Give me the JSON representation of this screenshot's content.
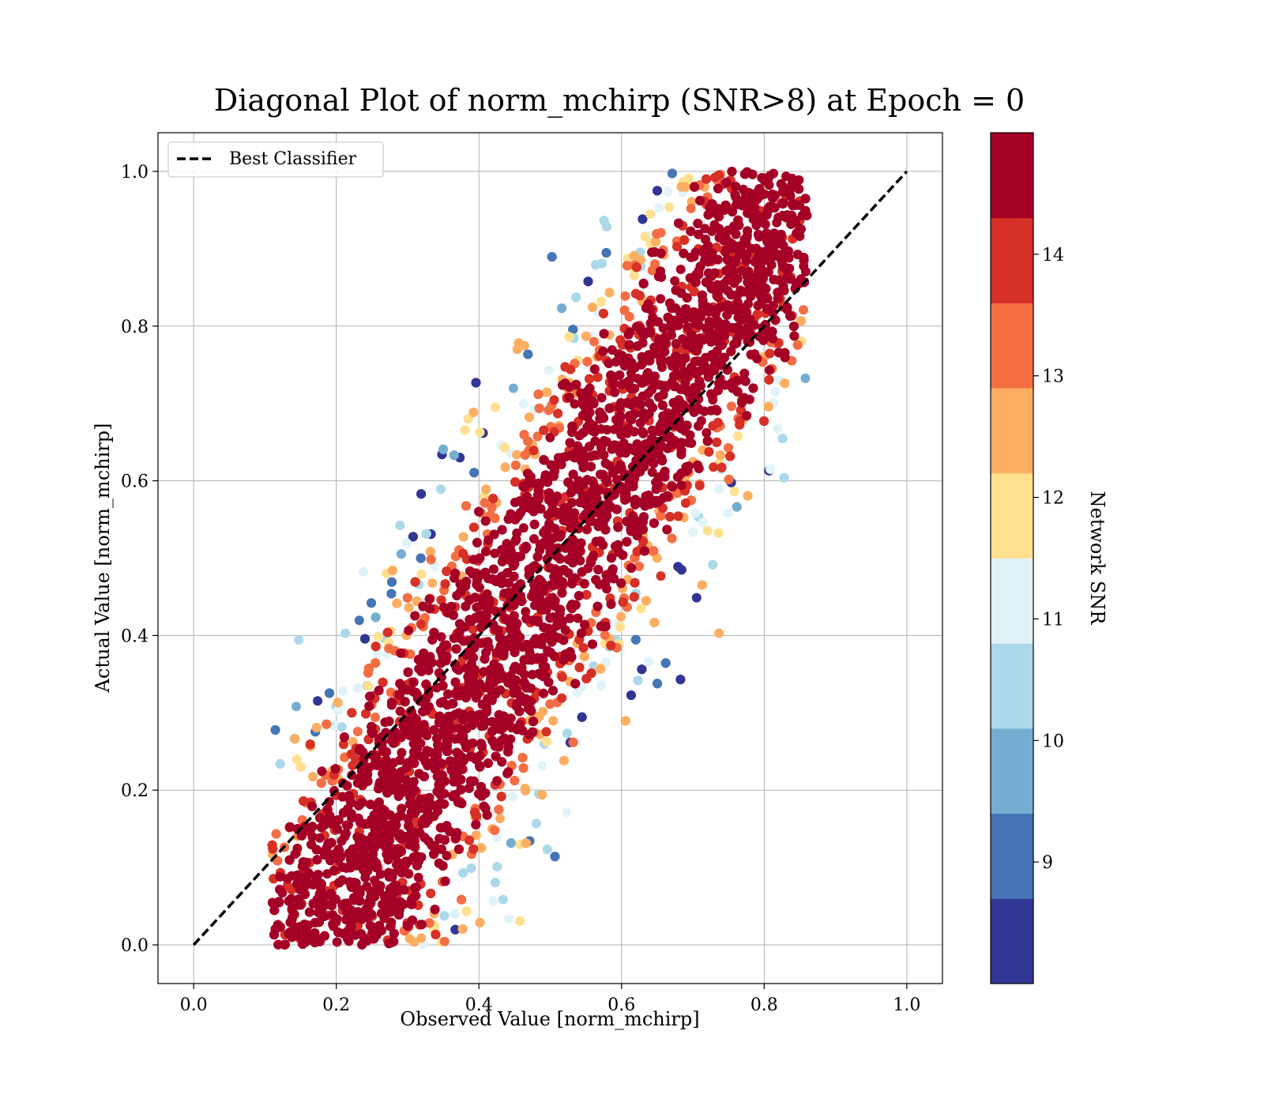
{
  "chart_data": {
    "type": "scatter",
    "title": "Diagonal Plot of norm_mchirp (SNR>8) at Epoch = 0",
    "xlabel": "Observed Value [norm_mchirp]",
    "ylabel": "Actual Value [norm_mchirp]",
    "xlim": [
      -0.05,
      1.05
    ],
    "ylim": [
      -0.05,
      1.05
    ],
    "xticks": [
      "0.0",
      "0.2",
      "0.4",
      "0.6",
      "0.8",
      "1.0"
    ],
    "yticks": [
      "0.0",
      "0.2",
      "0.4",
      "0.6",
      "0.8",
      "1.0"
    ],
    "grid": true,
    "legend": {
      "placement": "upper-left",
      "entries": [
        {
          "label": "Best Classifier",
          "style": "dashed",
          "color": "#000000"
        }
      ]
    },
    "reference_line": {
      "name": "Best Classifier",
      "x": [
        0.0,
        1.0
      ],
      "y": [
        0.0,
        1.0
      ]
    },
    "point_cloud": {
      "description": "dense scatter of observed vs actual norm_mchirp colored by Network SNR",
      "x_range": [
        0.11,
        0.86
      ],
      "y_range": [
        0.0,
        1.0
      ],
      "observed_vs_actual_offset_center": 0.1,
      "observed_vs_actual_offset_spread": 0.09,
      "point_count_rendered": 9000
    },
    "colorbar": {
      "label": "Network SNR",
      "range": [
        8.0,
        15.0
      ],
      "ticks": [
        "9",
        "10",
        "11",
        "12",
        "13",
        "14"
      ],
      "tick_values": [
        9,
        10,
        11,
        12,
        13,
        14
      ],
      "colors": [
        "#313695",
        "#4575b4",
        "#74add1",
        "#abd9e9",
        "#e0f3f8",
        "#fee090",
        "#fdae61",
        "#f46d43",
        "#d73027",
        "#a50026"
      ]
    }
  }
}
